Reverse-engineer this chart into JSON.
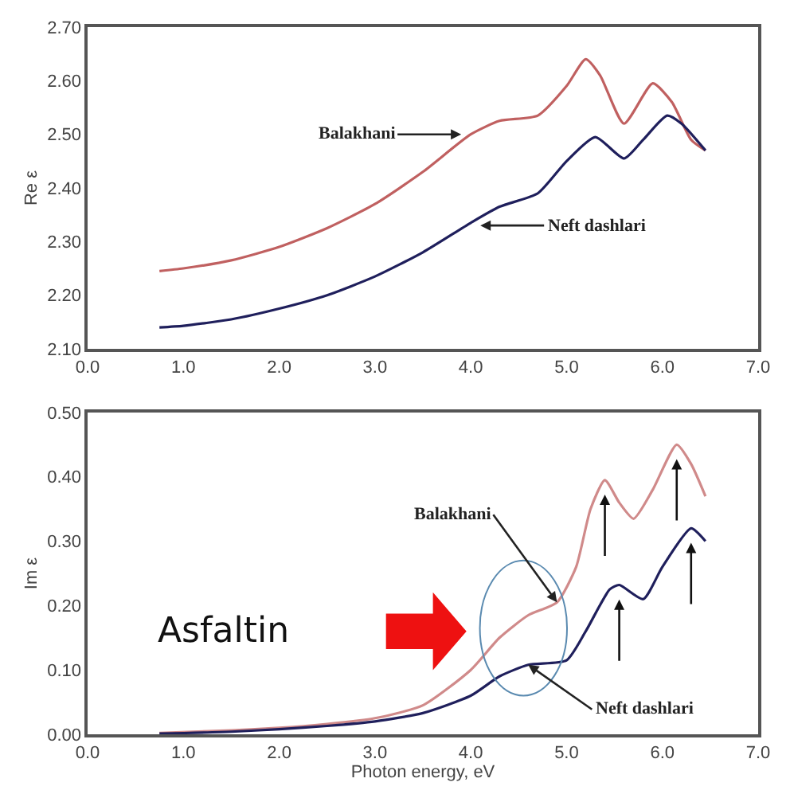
{
  "chart_data": [
    {
      "type": "line",
      "ylabel": "Re ε",
      "xlim": [
        0.0,
        7.0
      ],
      "xticks": [
        {
          "value": 0,
          "label": "0.0"
        },
        {
          "value": 1,
          "label": "1.0"
        },
        {
          "value": 2,
          "label": "2.0"
        },
        {
          "value": 3,
          "label": "3.0"
        },
        {
          "value": 4,
          "label": "4.0"
        },
        {
          "value": 5,
          "label": "5.0"
        },
        {
          "value": 6,
          "label": "6.0"
        },
        {
          "value": 7,
          "label": "7.0"
        }
      ],
      "ylim": [
        2.1,
        2.7
      ],
      "yticks": [
        {
          "value": 2.1,
          "label": "2.10"
        },
        {
          "value": 2.2,
          "label": "2.20"
        },
        {
          "value": 2.3,
          "label": "2.30"
        },
        {
          "value": 2.4,
          "label": "2.40"
        },
        {
          "value": 2.5,
          "label": "2.50"
        },
        {
          "value": 2.6,
          "label": "2.60"
        },
        {
          "value": 2.7,
          "label": "2.70"
        }
      ],
      "marker": "none",
      "line_style": "solid",
      "series": [
        {
          "color": "#c06060",
          "x": [
            0.75,
            1.0,
            1.5,
            2.0,
            2.5,
            3.0,
            3.5,
            4.0,
            4.3,
            4.7,
            5.0,
            5.2,
            5.35,
            5.6,
            5.9,
            6.1,
            6.3,
            6.45
          ],
          "values": [
            2.245,
            2.25,
            2.265,
            2.29,
            2.325,
            2.37,
            2.43,
            2.5,
            2.525,
            2.535,
            2.59,
            2.64,
            2.61,
            2.52,
            2.595,
            2.56,
            2.49,
            2.47
          ]
        },
        {
          "color": "#1f1f5c",
          "x": [
            0.75,
            1.0,
            1.5,
            2.0,
            2.5,
            3.0,
            3.5,
            4.0,
            4.3,
            4.7,
            5.0,
            5.3,
            5.6,
            5.8,
            6.05,
            6.2,
            6.45
          ],
          "values": [
            2.14,
            2.143,
            2.155,
            2.175,
            2.2,
            2.235,
            2.28,
            2.335,
            2.365,
            2.39,
            2.45,
            2.495,
            2.455,
            2.49,
            2.535,
            2.52,
            2.47
          ]
        }
      ],
      "annotations": [
        {
          "text": "Balakhani",
          "x": 3.9,
          "y": 2.5
        },
        {
          "text": "Neft dashlari",
          "x": 4.1,
          "y": 2.33
        }
      ]
    },
    {
      "type": "line",
      "xlabel": "Photon energy, eV",
      "ylabel": "Im ε",
      "xlim": [
        0.0,
        7.0
      ],
      "xticks": [
        {
          "value": 0,
          "label": "0.0"
        },
        {
          "value": 1,
          "label": "1.0"
        },
        {
          "value": 2,
          "label": "2.0"
        },
        {
          "value": 3,
          "label": "3.0"
        },
        {
          "value": 4,
          "label": "4.0"
        },
        {
          "value": 5,
          "label": "5.0"
        },
        {
          "value": 6,
          "label": "6.0"
        },
        {
          "value": 7,
          "label": "7.0"
        }
      ],
      "ylim": [
        0.0,
        0.5
      ],
      "yticks": [
        {
          "value": 0,
          "label": "0.00"
        },
        {
          "value": 0.1,
          "label": "0.10"
        },
        {
          "value": 0.2,
          "label": "0.20"
        },
        {
          "value": 0.3,
          "label": "0.30"
        },
        {
          "value": 0.4,
          "label": "0.40"
        },
        {
          "value": 0.5,
          "label": "0.50"
        }
      ],
      "marker": "none",
      "line_style": "solid",
      "series": [
        {
          "color": "#d08a8a",
          "x": [
            0.75,
            1.5,
            2.0,
            2.5,
            3.0,
            3.5,
            4.0,
            4.3,
            4.6,
            4.9,
            5.1,
            5.25,
            5.4,
            5.55,
            5.7,
            5.9,
            6.15,
            6.3,
            6.45
          ],
          "values": [
            0.002,
            0.006,
            0.01,
            0.016,
            0.025,
            0.045,
            0.1,
            0.15,
            0.185,
            0.205,
            0.26,
            0.35,
            0.395,
            0.36,
            0.335,
            0.38,
            0.45,
            0.42,
            0.37
          ]
        },
        {
          "color": "#1f1f5c",
          "x": [
            0.75,
            1.5,
            2.0,
            2.5,
            3.0,
            3.5,
            4.0,
            4.3,
            4.6,
            5.0,
            5.2,
            5.45,
            5.55,
            5.8,
            6.0,
            6.3,
            6.45
          ],
          "values": [
            0.001,
            0.004,
            0.008,
            0.013,
            0.02,
            0.033,
            0.06,
            0.09,
            0.108,
            0.115,
            0.16,
            0.225,
            0.232,
            0.21,
            0.26,
            0.32,
            0.3
          ]
        }
      ],
      "annotations": [
        {
          "text": "Balakhani",
          "x": 4.9,
          "y": 0.205
        },
        {
          "text": "Neft dashlari",
          "x": 4.6,
          "y": 0.108
        },
        "Asfaltin"
      ]
    }
  ]
}
